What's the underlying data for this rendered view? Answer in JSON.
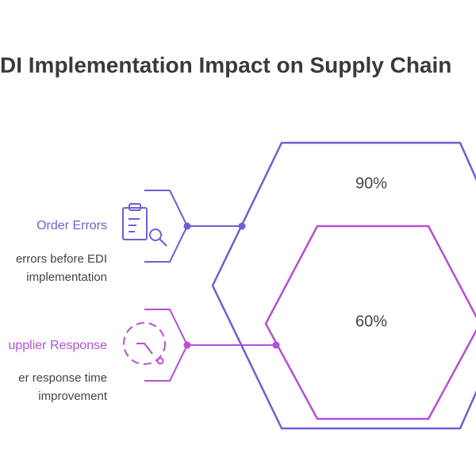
{
  "header": {
    "title": "DI Implementation Impact on Supply Chain"
  },
  "items": [
    {
      "label": "Order Errors",
      "description": [
        "errors before EDI",
        "implementation"
      ],
      "value": "90%"
    },
    {
      "label": "upplier Response",
      "description": [
        "er response time",
        "improvement"
      ],
      "value": "60%"
    }
  ]
}
